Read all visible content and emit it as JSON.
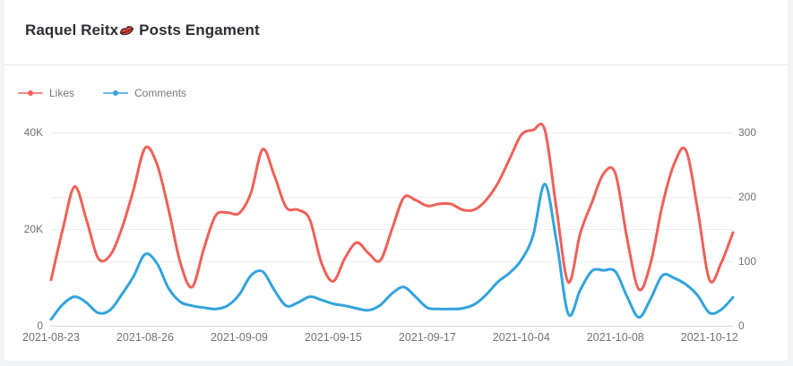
{
  "page": {
    "background": "#f1f3f4",
    "card_background": "#ffffff"
  },
  "header": {
    "title_prefix": "Raquel Reitx",
    "title_emoji": "💋",
    "title_suffix": "Posts Engament"
  },
  "chart_data": {
    "type": "line",
    "smooth": true,
    "grid": true,
    "legend": {
      "position": "top-left",
      "items": [
        "Likes",
        "Comments"
      ]
    },
    "x_axis": {
      "type": "category",
      "visible_tick_labels": [
        "2021-08-23",
        "2021-08-26",
        "2021-09-09",
        "2021-09-15",
        "2021-09-17",
        "2021-10-04",
        "2021-10-08",
        "2021-10-12"
      ],
      "tick_indices": [
        0,
        8,
        16,
        24,
        32,
        40,
        48,
        56
      ]
    },
    "left_axis": {
      "max": 40000,
      "ticks": [
        {
          "v": 40000,
          "label": "40K"
        },
        {
          "v": 20000,
          "label": "20K"
        },
        {
          "v": 0,
          "label": "0"
        }
      ]
    },
    "right_axis": {
      "max": 300,
      "ticks": [
        {
          "v": 300,
          "label": "300"
        },
        {
          "v": 200,
          "label": "200"
        },
        {
          "v": 100,
          "label": "100"
        },
        {
          "v": 0,
          "label": "0"
        }
      ]
    },
    "series": [
      {
        "name": "Likes",
        "color": "#ee6159",
        "axis": "left",
        "values": [
          9500,
          20000,
          28800,
          22000,
          14000,
          14500,
          20000,
          28000,
          36800,
          33500,
          24000,
          13000,
          8000,
          16000,
          22800,
          23400,
          23300,
          27500,
          36500,
          31000,
          24500,
          24000,
          22000,
          13000,
          9200,
          14000,
          17200,
          15000,
          13500,
          20000,
          26500,
          26000,
          24800,
          25200,
          25200,
          24000,
          24000,
          26000,
          29500,
          34500,
          39500,
          40500,
          40500,
          24000,
          9000,
          19000,
          25500,
          31500,
          31500,
          18000,
          7500,
          13000,
          25000,
          33500,
          36300,
          24000,
          9500,
          13000,
          19300
        ]
      },
      {
        "name": "Comments",
        "color": "#32a3dc",
        "axis": "right",
        "values": [
          10,
          33,
          45,
          36,
          20,
          24,
          48,
          76,
          111,
          97,
          58,
          37,
          31,
          28,
          26,
          31,
          48,
          78,
          84,
          55,
          31,
          36,
          45,
          40,
          34,
          31,
          27,
          24,
          32,
          50,
          60,
          45,
          28,
          26,
          26,
          27,
          33,
          48,
          68,
          82,
          102,
          140,
          220,
          130,
          18,
          55,
          85,
          86,
          84,
          45,
          13,
          42,
          78,
          74,
          64,
          47,
          20,
          25,
          44
        ]
      }
    ]
  }
}
